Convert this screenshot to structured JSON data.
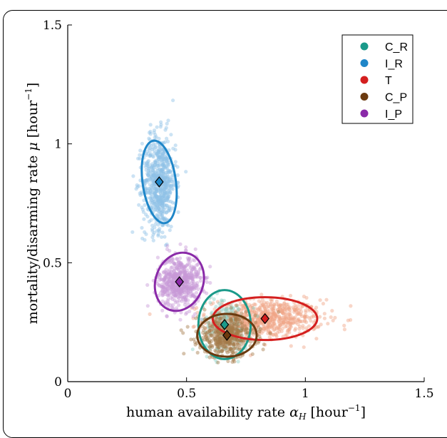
{
  "chart_data": {
    "type": "scatter",
    "title": "",
    "xlabel_text": "human availability rate ",
    "xlabel_sym": "α",
    "xlabel_sub": "H",
    "xlabel_unit": " [hour",
    "xlabel_exp": "−1",
    "xlabel_close": "]",
    "ylabel_text": "mortality/disarming rate ",
    "ylabel_sym": "μ",
    "ylabel_unit": " [hour",
    "ylabel_exp": "−1",
    "ylabel_close": "]",
    "xlim": [
      0,
      1.5
    ],
    "ylim": [
      0,
      1.5
    ],
    "xticks": [
      0,
      0.5,
      1,
      1.5
    ],
    "xtick_labels": [
      "0",
      "0.5",
      "1",
      "1.5"
    ],
    "yticks": [
      0,
      0.5,
      1,
      1.5
    ],
    "ytick_labels": [
      "0",
      "0.5",
      "1",
      "1.5"
    ],
    "grid": false,
    "legend_position": "top-right",
    "series": [
      {
        "name": "C_R",
        "color": "#1a9a8a",
        "point_color": "#8fd0c6",
        "mean": [
          0.66,
          0.24
        ],
        "sd": [
          0.05,
          0.06
        ],
        "ellipse": {
          "rx": 0.11,
          "ry": 0.145,
          "angle_deg": 0
        },
        "n": 180
      },
      {
        "name": "I_R",
        "color": "#1f86c8",
        "point_color": "#8ec0e6",
        "mean": [
          0.385,
          0.84
        ],
        "sd": [
          0.035,
          0.1
        ],
        "ellipse": {
          "rx": 0.07,
          "ry": 0.175,
          "angle_deg": -8
        },
        "n": 700
      },
      {
        "name": "T",
        "color": "#d41f1f",
        "point_color": "#f0a585",
        "mean": [
          0.83,
          0.265
        ],
        "sd": [
          0.12,
          0.04
        ],
        "ellipse": {
          "rx": 0.22,
          "ry": 0.09,
          "angle_deg": 0
        },
        "n": 700
      },
      {
        "name": "C_P",
        "color": "#6b3a0f",
        "point_color": "#a57a4a",
        "mean": [
          0.67,
          0.195
        ],
        "sd": [
          0.06,
          0.045
        ],
        "ellipse": {
          "rx": 0.125,
          "ry": 0.09,
          "angle_deg": 0
        },
        "n": 500
      },
      {
        "name": "I_P",
        "color": "#8a2aa8",
        "point_color": "#c79ad8",
        "mean": [
          0.47,
          0.42
        ],
        "sd": [
          0.045,
          0.055
        ],
        "ellipse": {
          "rx": 0.1,
          "ry": 0.125,
          "angle_deg": 20
        },
        "n": 600
      }
    ]
  }
}
